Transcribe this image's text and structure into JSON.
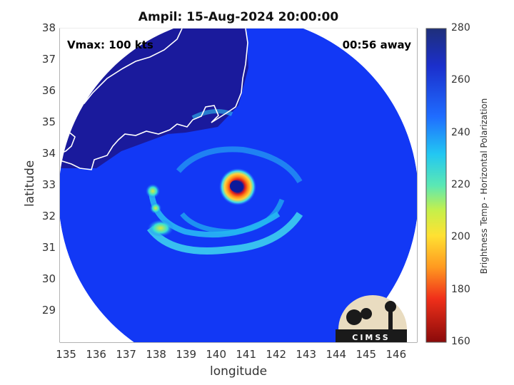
{
  "title": "Ampil: 15-Aug-2024 20:00:00",
  "vmax_label": "Vmax: 100 kts",
  "away_label": "00:56 away",
  "xlabel": "longitude",
  "ylabel": "latitude",
  "x_ticks": [
    "135",
    "136",
    "137",
    "138",
    "139",
    "140",
    "141",
    "142",
    "143",
    "144",
    "145",
    "146"
  ],
  "y_ticks": [
    "29",
    "30",
    "31",
    "32",
    "33",
    "34",
    "35",
    "36",
    "37",
    "38"
  ],
  "xlim": [
    134.85,
    146.75
  ],
  "ylim": [
    28.0,
    38.0
  ],
  "colorbar": {
    "label": "Brightness Temp - Horizontal Polarization",
    "ticks": [
      "280",
      "260",
      "240",
      "220",
      "200",
      "180",
      "160"
    ],
    "range": [
      160,
      280
    ]
  },
  "logo_text": "CIMSS",
  "storm_center": {
    "lon": 140.9,
    "lat": 33.0
  },
  "colors": {
    "deep_blue": "#1a1a9c",
    "swath_blue": "#1238f5",
    "coast": "#ffffff"
  }
}
